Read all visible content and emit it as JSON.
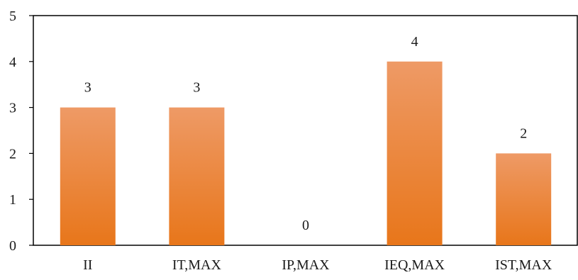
{
  "chart_data": {
    "type": "bar",
    "title": "",
    "xlabel": "",
    "ylabel": "",
    "categories": [
      "II",
      "IT,MAX",
      "IP,MAX",
      "IEQ,MAX",
      "IST,MAX"
    ],
    "series": [
      {
        "values": [
          3,
          3,
          0,
          4,
          2
        ]
      }
    ],
    "data_labels": [
      "3",
      "3",
      "0",
      "4",
      "2"
    ],
    "ylim": [
      0,
      5
    ],
    "yticks": [
      0,
      1,
      2,
      3,
      4,
      5
    ],
    "grid": false,
    "legend": "none",
    "colors": {
      "bar_top": "#ee9a66",
      "bar_bottom": "#e8761a",
      "axis": "#000000"
    }
  }
}
